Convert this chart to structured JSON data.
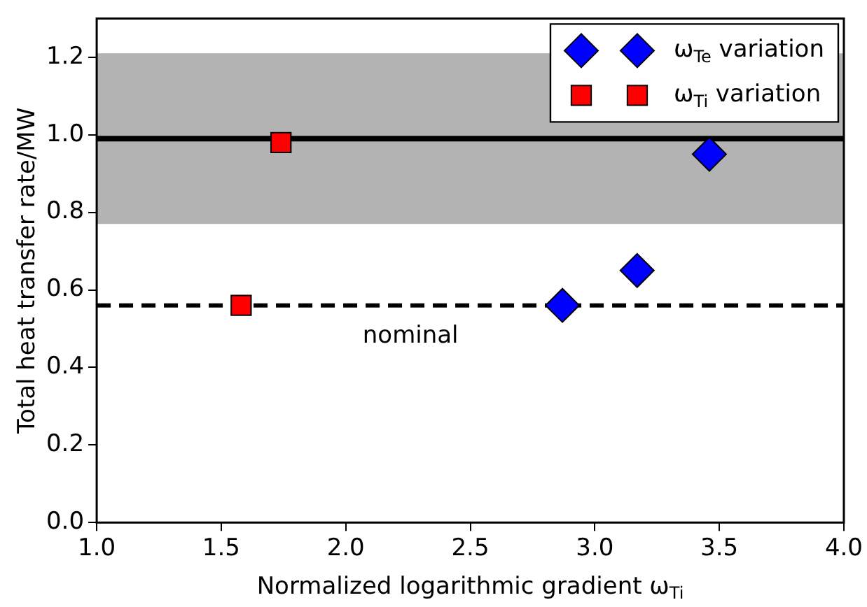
{
  "chart_data": {
    "type": "scatter",
    "xlabel": "Normalized logarithmic gradient ω$_{Ti}$",
    "ylabel": "Total heat transfer rate/MW",
    "xlim": [
      1.0,
      4.0
    ],
    "xticks": [
      {
        "value": 1.0,
        "label": "1.0"
      },
      1.5,
      {
        "value": 2.0,
        "label": "2.0"
      },
      2.5,
      {
        "value": 3.0,
        "label": "3.0"
      },
      3.5,
      {
        "value": 4.0,
        "label": "4.0"
      }
    ],
    "ylim": [
      0,
      1.3
    ],
    "yticks": [
      {
        "value": 0,
        "label": "0.0"
      },
      0.2,
      0.4,
      0.6,
      0.8,
      {
        "value": 1.0,
        "label": "1.0"
      },
      1.2
    ],
    "grid": false,
    "legend": "top right",
    "series": [
      {
        "name": "ω$_{Te}$ variation",
        "color": "#0000ff",
        "marker": "diamond",
        "x": [
          2.87,
          3.17,
          3.46
        ],
        "values": [
          0.56,
          0.65,
          0.95
        ]
      },
      {
        "name": "ω$_{Ti}$ variation",
        "color": "#ff0000",
        "marker": "square",
        "x": [
          1.58,
          1.74
        ],
        "values": [
          0.56,
          0.98
        ]
      }
    ],
    "ref_lines": [
      {
        "axis": "y",
        "value": 0.99,
        "color": "#000000",
        "line_style": "solid"
      },
      {
        "axis": "y",
        "value": 0.56,
        "label": "nominal",
        "color": "#000000",
        "line_style": "dashed"
      }
    ],
    "bands": [
      {
        "axis": "y",
        "from": 0.77,
        "to": 1.21,
        "color": "#b3b3b3"
      }
    ]
  }
}
